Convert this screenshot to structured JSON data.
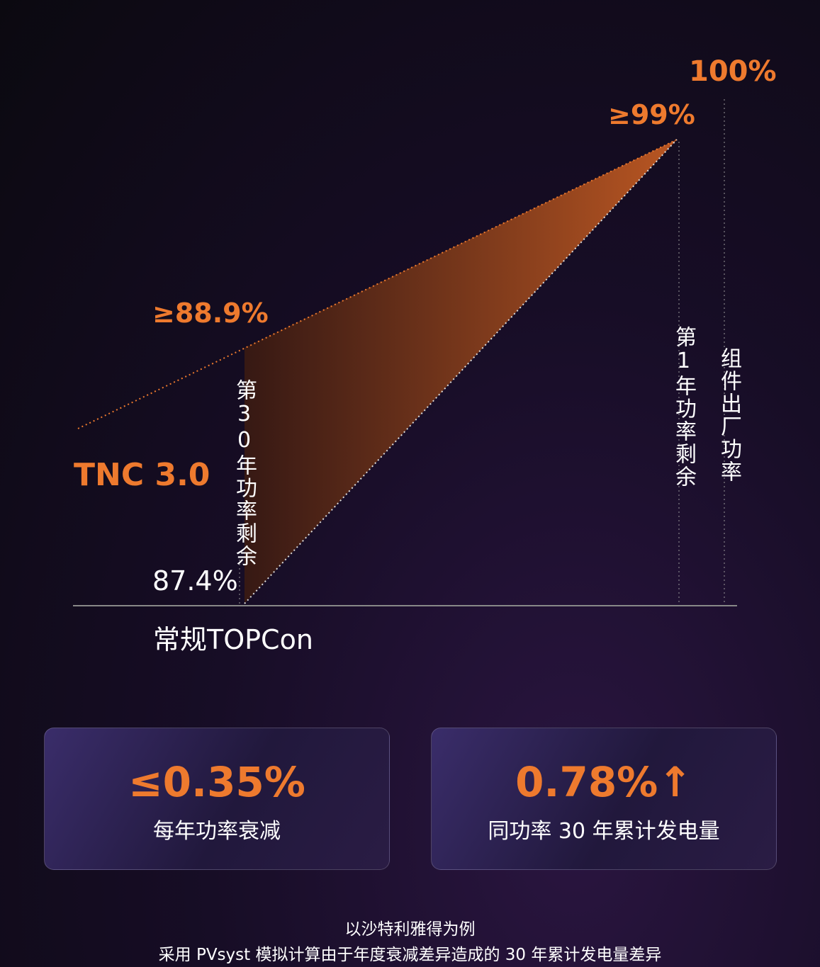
{
  "diagram": {
    "top_label": "100%",
    "year1_label": "≥99%",
    "tnc_label": "≥88.9%",
    "tnc_name": "TNC 3.0",
    "year30_caption": "第30年功率剩余",
    "topcon_label": "87.4%",
    "topcon_name": "常规TOPCon",
    "year1_caption": "第1年功率剩余",
    "factory_caption": "组件出厂功率"
  },
  "cards": [
    {
      "value": "≤0.35%",
      "label": "每年功率衰减"
    },
    {
      "value": "0.78%↑",
      "label": "同功率 30 年累计发电量"
    }
  ],
  "footnote": [
    "以沙特利雅得为例",
    "采用 PVsyst 模拟计算由于年度衰减差异造成的 30 年累计发电量差异"
  ]
}
